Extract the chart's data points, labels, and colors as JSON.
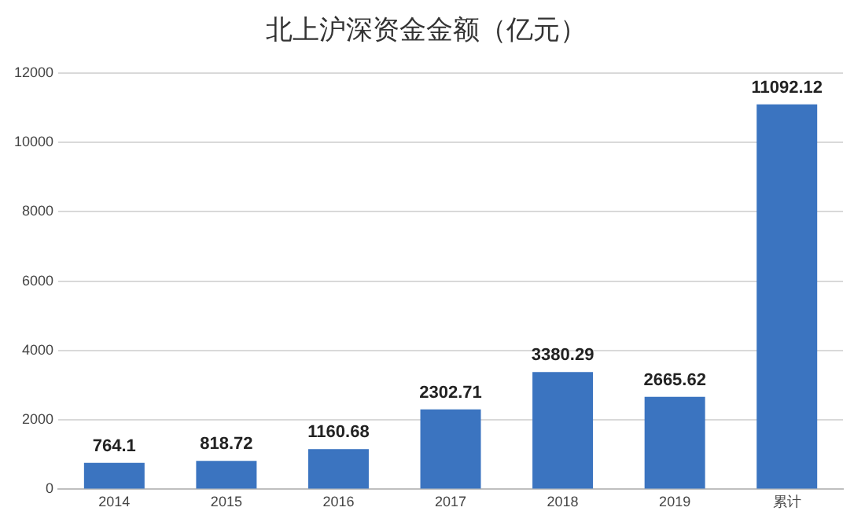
{
  "chart_data": {
    "type": "bar",
    "title": "北上沪深资金金额（亿元）",
    "categories": [
      "2014",
      "2015",
      "2016",
      "2017",
      "2018",
      "2019",
      "累计"
    ],
    "values": [
      764.1,
      818.72,
      1160.68,
      2302.71,
      3380.29,
      2665.62,
      11092.12
    ],
    "color": "#3b74c0",
    "ylim": [
      0,
      12000
    ],
    "yticks": [
      0,
      2000,
      4000,
      6000,
      8000,
      10000,
      12000
    ],
    "grid": "y",
    "data_labels": true,
    "legend": false
  }
}
